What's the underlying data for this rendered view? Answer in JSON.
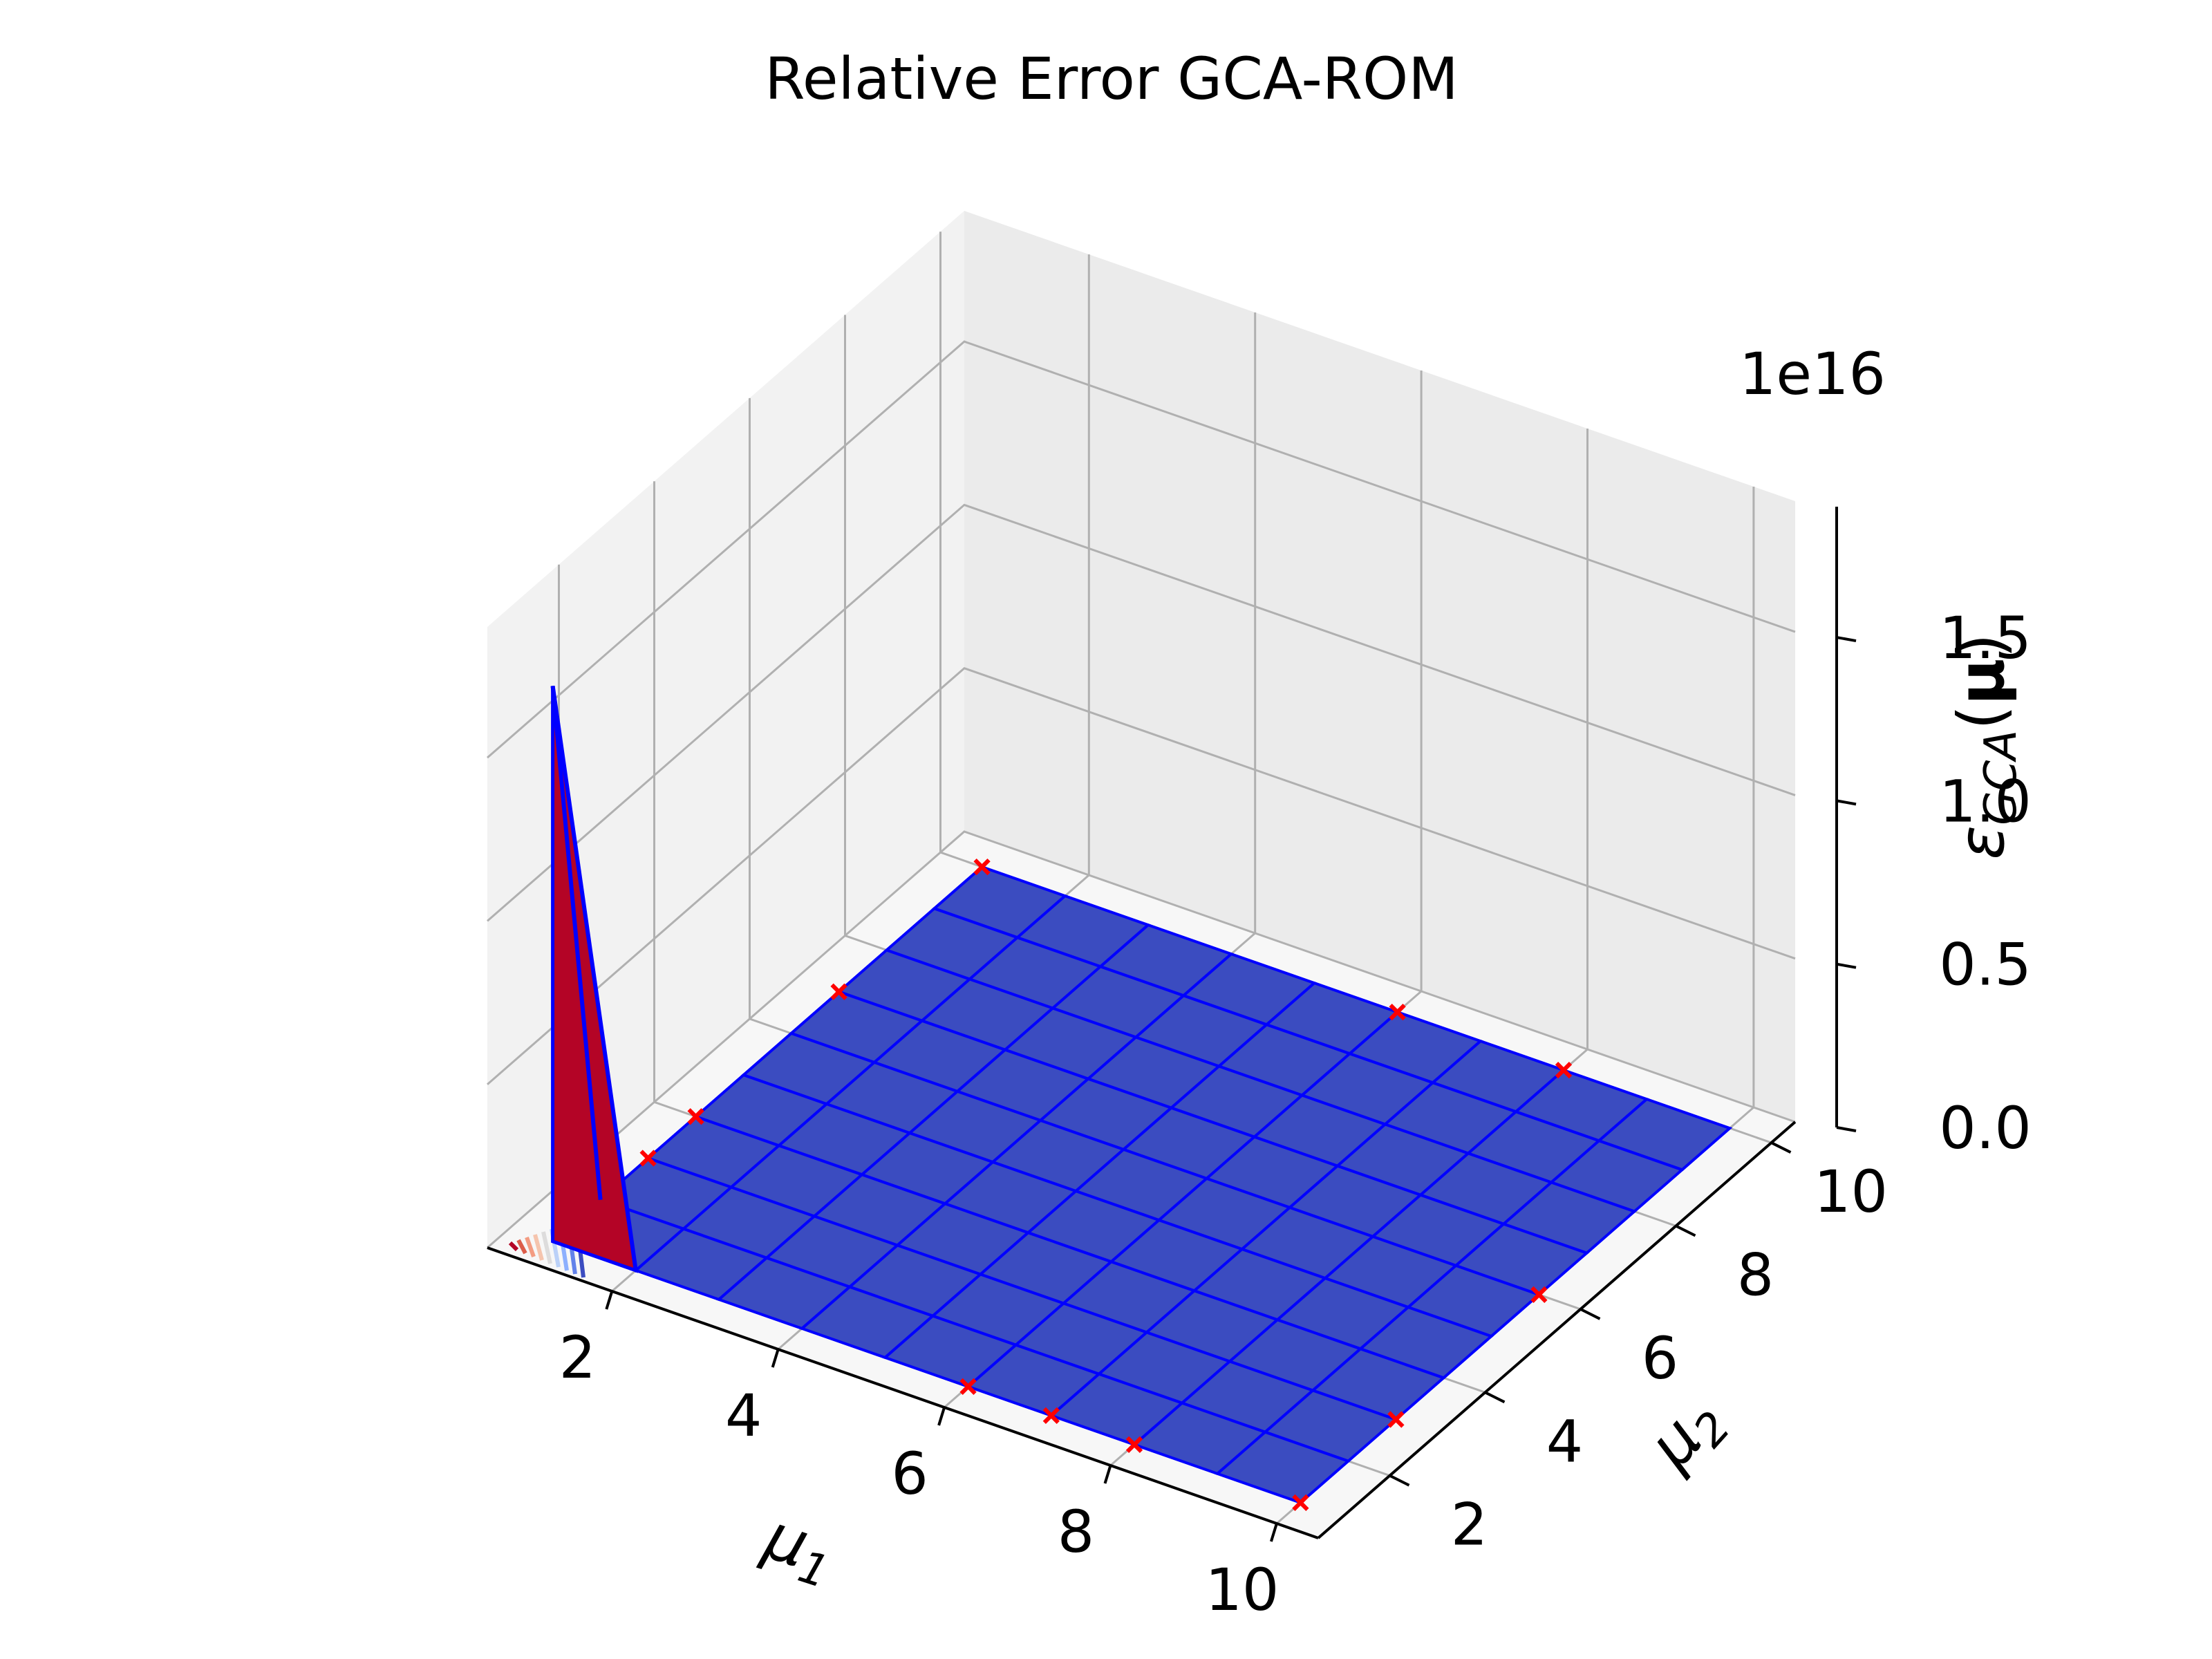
{
  "chart_data": {
    "type": "surface3d",
    "title": "Relative Error GCA-ROM",
    "xlabel": "μ1",
    "ylabel": "μ2",
    "zlabel": "εGCA(μ)",
    "z_offset_label": "1e16",
    "xlim": [
      0.5,
      10.5
    ],
    "ylim": [
      0.5,
      10.5
    ],
    "zlim": [
      0,
      1.9
    ],
    "x_ticks": [
      "2",
      "4",
      "6",
      "8",
      "10"
    ],
    "y_ticks": [
      "2",
      "4",
      "6",
      "8",
      "10"
    ],
    "z_ticks": [
      "0.0",
      "0.5",
      "1.0",
      "1.5"
    ],
    "grid": true,
    "grid_x": [
      1,
      2,
      3,
      4,
      5,
      6,
      7,
      8,
      9,
      10
    ],
    "grid_y": [
      1,
      2,
      3,
      4,
      5,
      6,
      7,
      8,
      9,
      10
    ],
    "surface_value_near_zero": 0,
    "spike": {
      "mu1": 1,
      "mu2": 1,
      "value": 1.7
    },
    "training_points": [
      {
        "mu1": 6,
        "mu2": 1
      },
      {
        "mu1": 7,
        "mu2": 1
      },
      {
        "mu1": 8,
        "mu2": 1
      },
      {
        "mu1": 10,
        "mu2": 1
      },
      {
        "mu1": 10,
        "mu2": 3
      },
      {
        "mu1": 10,
        "mu2": 6
      },
      {
        "mu1": 1,
        "mu2": 3
      },
      {
        "mu1": 1,
        "mu2": 4
      },
      {
        "mu1": 1,
        "mu2": 7
      },
      {
        "mu1": 1,
        "mu2": 10
      },
      {
        "mu1": 6,
        "mu2": 10
      },
      {
        "mu1": 8,
        "mu2": 10
      }
    ],
    "colors": {
      "surface_fill": "#3b4cc0",
      "surface_edge": "#0000ff",
      "spike_fill": "#b40426",
      "marker": "#ff0000",
      "pane": "#f2f2f2",
      "grid": "#b0b0b0"
    }
  }
}
